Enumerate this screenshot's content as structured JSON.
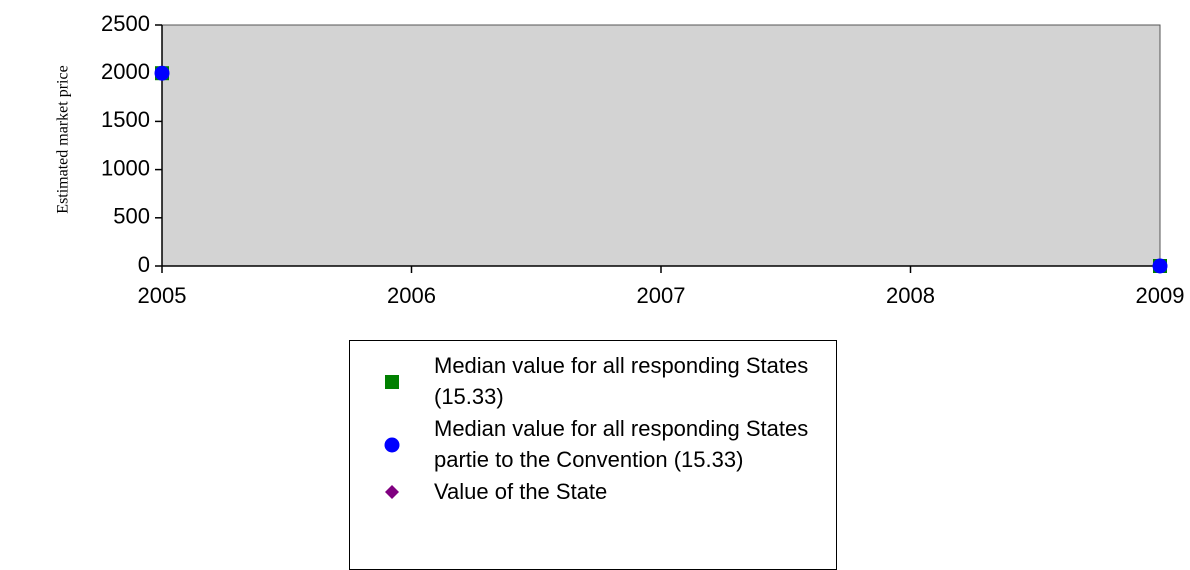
{
  "chart_data": {
    "type": "scatter",
    "y_label": "Estimated market price",
    "x": [
      2005,
      2009
    ],
    "series": [
      {
        "name": "Median value for all responding States (15.33)",
        "color": "#008000",
        "marker": "square",
        "values": [
          2000,
          0
        ]
      },
      {
        "name": "Median value for all responding States partie to the Convention (15.33)",
        "color": "#0000ff",
        "marker": "circle",
        "values": [
          2000,
          0
        ]
      },
      {
        "name": "Value of the State",
        "color": "#800080",
        "marker": "diamond",
        "values": [
          null,
          null
        ]
      }
    ],
    "xlim": [
      2005,
      2009
    ],
    "xticks": [
      2005,
      2006,
      2007,
      2008,
      2009
    ],
    "ylim": [
      0,
      2500
    ],
    "yticks": [
      0,
      500,
      1000,
      1500,
      2000,
      2500
    ],
    "plot_background": "#d3d3d3"
  }
}
